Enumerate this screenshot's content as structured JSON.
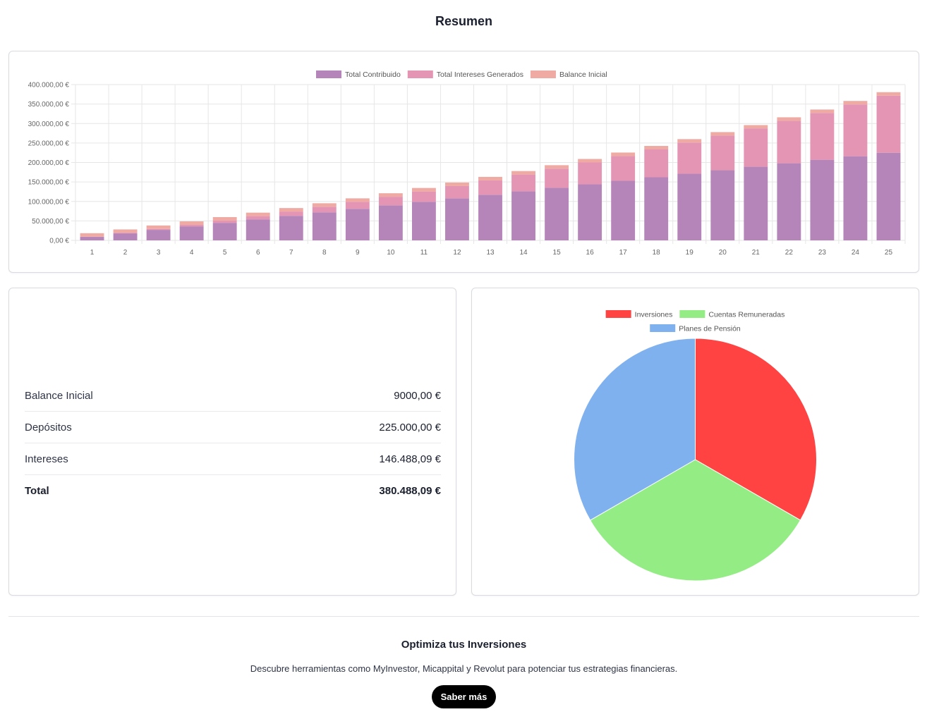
{
  "page": {
    "title": "Resumen"
  },
  "colors": {
    "contribuido": "#b585ba",
    "intereses": "#e595b4",
    "balance": "#eeaaa3",
    "inversiones": "#ff4343",
    "cuentas": "#93ec84",
    "planes": "#80b1ef"
  },
  "chart_data": [
    {
      "type": "bar",
      "stacked": true,
      "categories": [
        "1",
        "2",
        "3",
        "4",
        "5",
        "6",
        "7",
        "8",
        "9",
        "10",
        "11",
        "12",
        "13",
        "14",
        "15",
        "16",
        "17",
        "18",
        "19",
        "20",
        "21",
        "22",
        "23",
        "24",
        "25"
      ],
      "series": [
        {
          "name": "Total Contribuido",
          "values": [
            9000,
            18000,
            27000,
            36000,
            45000,
            54000,
            63000,
            72000,
            81000,
            90000,
            99000,
            108000,
            117000,
            126000,
            135000,
            144000,
            153000,
            162000,
            171000,
            180000,
            189000,
            198000,
            207000,
            216000,
            225000
          ]
        },
        {
          "name": "Total Intereses Generados",
          "values": [
            360,
            1100,
            2250,
            3800,
            5800,
            8200,
            11000,
            14300,
            17900,
            22000,
            26500,
            31500,
            37000,
            43000,
            49000,
            56000,
            63500,
            71500,
            80000,
            89000,
            98000,
            109000,
            120000,
            133000,
            146488.09
          ]
        },
        {
          "name": "Balance Inicial",
          "values": [
            9000,
            9000,
            9000,
            9000,
            9000,
            9000,
            9000,
            9000,
            9000,
            9000,
            9000,
            9000,
            9000,
            9000,
            9000,
            9000,
            9000,
            9000,
            9000,
            9000,
            9000,
            9000,
            9000,
            9000,
            9000
          ]
        }
      ],
      "y_ticks": [
        "0,00 €",
        "50.000,00 €",
        "100.000,00 €",
        "150.000,00 €",
        "200.000,00 €",
        "250.000,00 €",
        "300.000,00 €",
        "350.000,00 €",
        "400.000,00 €"
      ],
      "ylim": [
        0,
        400000
      ],
      "grid": true,
      "legend": "top"
    },
    {
      "type": "pie",
      "labels": [
        "Inversiones",
        "Cuentas Remuneradas",
        "Planes de Pensión"
      ],
      "values": [
        33.33,
        33.33,
        33.34
      ],
      "legend": "top"
    }
  ],
  "summary": {
    "rows": [
      {
        "label": "Balance Inicial",
        "value": "9000,00 €"
      },
      {
        "label": "Depósitos",
        "value": "225.000,00 €"
      },
      {
        "label": "Intereses",
        "value": "146.488,09 €"
      },
      {
        "label": "Total",
        "value": "380.488,09 €"
      }
    ]
  },
  "promo": {
    "title": "Optimiza tus Inversiones",
    "text": "Descubre herramientas como MyInvestor, Micappital y Revolut para potenciar tus estrategias financieras.",
    "button": "Saber más"
  }
}
